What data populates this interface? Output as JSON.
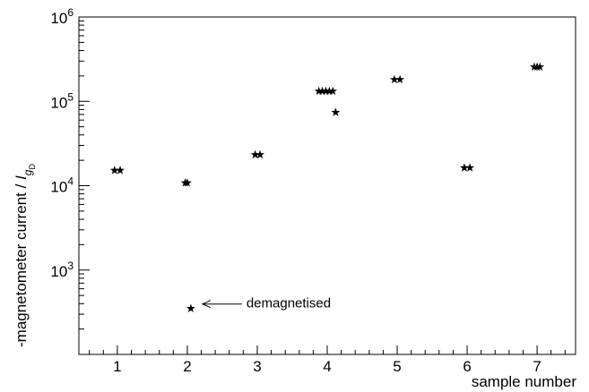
{
  "chart_data": {
    "type": "scatter",
    "xlabel": "sample number",
    "ylabel": "-magnetometer current / ",
    "ylabel_symbol": "I",
    "ylabel_subscript": "g",
    "ylabel_subsubscript": "D",
    "x_ticks": [
      "1",
      "2",
      "3",
      "4",
      "5",
      "6",
      "7"
    ],
    "y_tick_base": "10",
    "y_tick_exponents": [
      "3",
      "4",
      "5",
      "6"
    ],
    "xlim": [
      0.45,
      7.55
    ],
    "ylim": [
      100,
      1000000
    ],
    "y_scale": "log",
    "grid": false,
    "marker": "star",
    "marker_color": "#000000",
    "series": [
      {
        "points": [
          {
            "x": 0.96,
            "y": 15200
          },
          {
            "x": 1.04,
            "y": 15200
          },
          {
            "x": 1.97,
            "y": 10800
          },
          {
            "x": 2.0,
            "y": 10800
          },
          {
            "x": 2.05,
            "y": 350
          },
          {
            "x": 2.97,
            "y": 23300
          },
          {
            "x": 3.04,
            "y": 23300
          },
          {
            "x": 3.88,
            "y": 132000
          },
          {
            "x": 3.93,
            "y": 132000
          },
          {
            "x": 3.98,
            "y": 132000
          },
          {
            "x": 4.03,
            "y": 132000
          },
          {
            "x": 4.08,
            "y": 132000
          },
          {
            "x": 4.12,
            "y": 74000
          },
          {
            "x": 4.96,
            "y": 181000
          },
          {
            "x": 5.04,
            "y": 181000
          },
          {
            "x": 5.96,
            "y": 16300
          },
          {
            "x": 6.04,
            "y": 16300
          },
          {
            "x": 6.96,
            "y": 256000
          },
          {
            "x": 7.0,
            "y": 256000
          },
          {
            "x": 7.04,
            "y": 256000
          }
        ]
      }
    ],
    "annotation": {
      "text": "demagnetised",
      "x": 2.05,
      "y": 350
    }
  }
}
